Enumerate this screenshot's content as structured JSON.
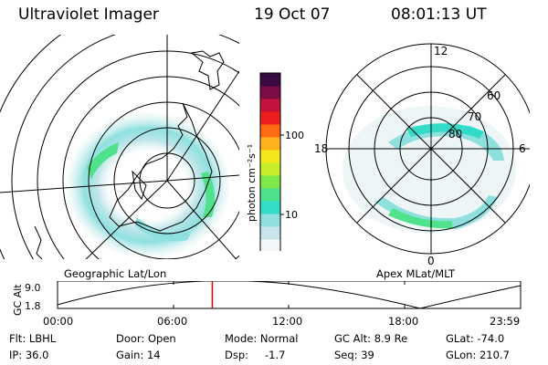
{
  "header": {
    "instrument": "Ultraviolet Imager",
    "date": "19 Oct 07",
    "time": "08:01:13 UT"
  },
  "colorbar": {
    "label": "photon cm⁻²s⁻¹",
    "tick_100": "100",
    "tick_10": "10",
    "colors": [
      "#f2f6f8",
      "#c8e6ec",
      "#8ee0df",
      "#33dcc8",
      "#4fe28a",
      "#7ee84a",
      "#c6ee2a",
      "#f4e81c",
      "#ffb21c",
      "#ff6a14",
      "#ee1e1e",
      "#c4123e",
      "#7a0c46",
      "#3a0a44"
    ]
  },
  "geographic_map": {
    "label": "Geographic Lat/Lon"
  },
  "apex_map": {
    "label": "Apex MLat/MLT",
    "mlt_top": "12",
    "mlt_left": "18",
    "mlt_right": "6",
    "mlt_bottom": "0",
    "lat_60": "60",
    "lat_70": "70",
    "lat_80": "80"
  },
  "timeline": {
    "ylabel": "GC Alt",
    "y_top": "9.0",
    "y_bottom": "1.8",
    "ticks": [
      "00:00",
      "06:00",
      "12:00",
      "18:00",
      "23:59"
    ],
    "marker_time_hours": 8.02
  },
  "status": {
    "flt": "Flt: LBHL",
    "door": "Door: Open",
    "mode": "Mode: Normal",
    "gc_alt": "GC Alt: 8.9 Re",
    "glat": "GLat: -74.0",
    "ip": "IP: 36.0",
    "gain": "Gain: 14",
    "dsp_label": "Dsp:",
    "dsp_value": "-1.7",
    "seq": "Seq: 39",
    "glon": "GLon: 210.7"
  }
}
